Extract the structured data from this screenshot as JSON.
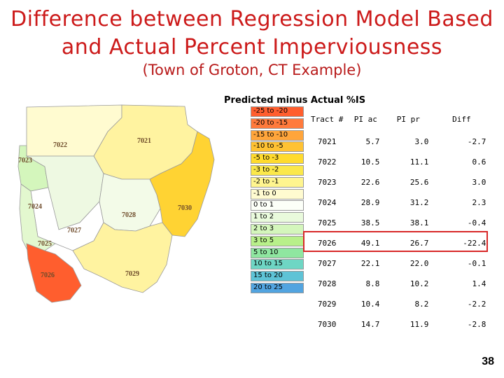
{
  "title": {
    "line1": "Difference between Regression Model Based",
    "line2": "and Actual Percent Imperviousness"
  },
  "subtitle": "(Town of Groton, CT Example)",
  "map": {
    "caption": "Predicted minus Actual %IS",
    "tract_labels": [
      "7022",
      "7021",
      "7023",
      "7024",
      "7027",
      "7028",
      "7030",
      "7025",
      "7026",
      "7029"
    ]
  },
  "legend": [
    {
      "label": "-25 to -20",
      "color": "#ff5e2e"
    },
    {
      "label": "-20 to -15",
      "color": "#ff7a3c"
    },
    {
      "label": "-15 to -10",
      "color": "#ffa53b"
    },
    {
      "label": "-10 to -5",
      "color": "#ffc233"
    },
    {
      "label": "-5 to -3",
      "color": "#ffdb2e"
    },
    {
      "label": "-3 to -2",
      "color": "#fbe84a"
    },
    {
      "label": "-2 to -1",
      "color": "#fff58f"
    },
    {
      "label": "-1 to 0",
      "color": "#fffbd0"
    },
    {
      "label": "0 to 1",
      "color": "#fcfff8"
    },
    {
      "label": "1 to 2",
      "color": "#e9fadc"
    },
    {
      "label": "2 to 3",
      "color": "#d4f6bc"
    },
    {
      "label": "3 to 5",
      "color": "#b8f08a"
    },
    {
      "label": "5 to 10",
      "color": "#8fe6a0"
    },
    {
      "label": "10 to 15",
      "color": "#6ed6c4"
    },
    {
      "label": "15 to 20",
      "color": "#5ec3d6"
    },
    {
      "label": "20 to 25",
      "color": "#52a4e0"
    }
  ],
  "table": {
    "headers": [
      "Tract #",
      "PI ac",
      "PI pr",
      "Diff"
    ],
    "rows": [
      [
        "7021",
        "5.7",
        "3.0",
        "-2.7"
      ],
      [
        "7022",
        "10.5",
        "11.1",
        "0.6"
      ],
      [
        "7023",
        "22.6",
        "25.6",
        "3.0"
      ],
      [
        "7024",
        "28.9",
        "31.2",
        "2.3"
      ],
      [
        "7025",
        "38.5",
        "38.1",
        "-0.4"
      ],
      [
        "7026",
        "49.1",
        "26.7",
        "-22.4"
      ],
      [
        "7027",
        "22.1",
        "22.0",
        "-0.1"
      ],
      [
        "7028",
        "8.8",
        "10.2",
        "1.4"
      ],
      [
        "7029",
        "10.4",
        "8.2",
        "-2.2"
      ],
      [
        "7030",
        "14.7",
        "11.9",
        "-2.8"
      ]
    ],
    "highlighted_tract": "7026"
  },
  "page_number": "38"
}
